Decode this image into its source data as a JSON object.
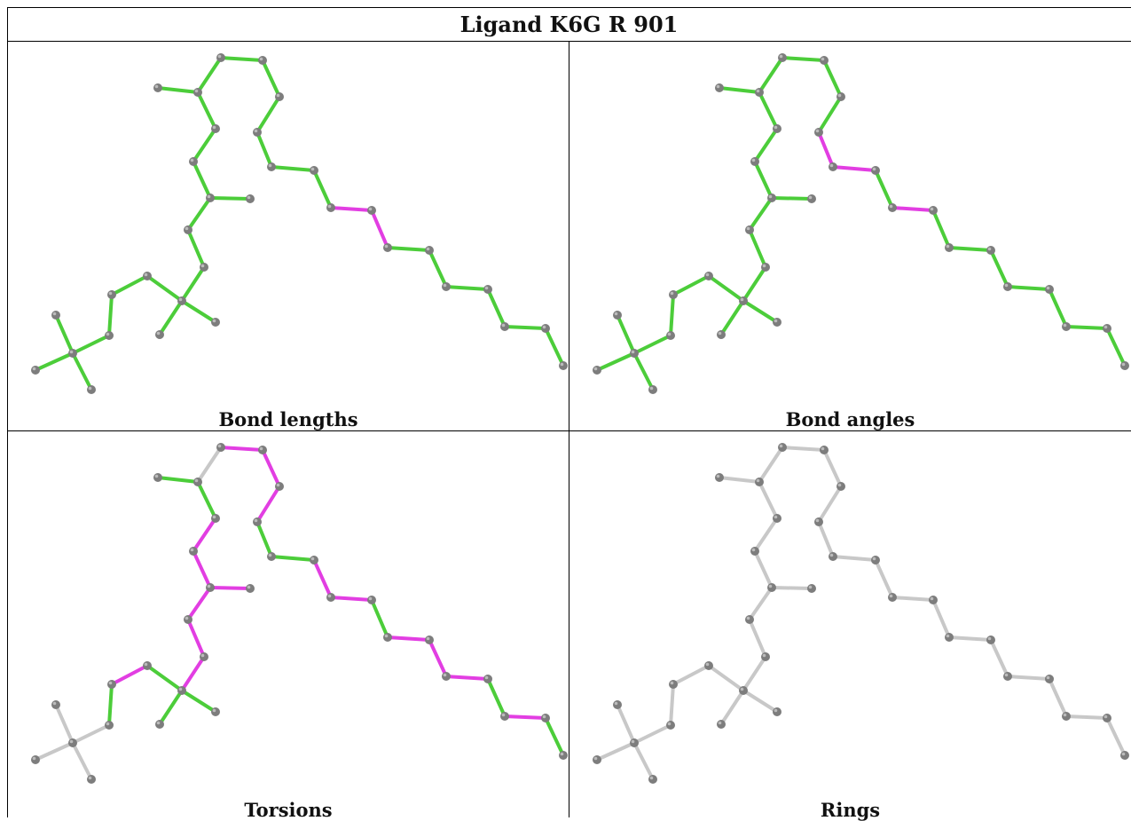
{
  "title": "Ligand K6G R 901",
  "colors": {
    "ok": "#4ccd3a",
    "outlier": "#e23ee2",
    "none": "#c8c8c8",
    "atom": "#7d7d7d",
    "atom_highlight": "#bbbbbb"
  },
  "panels": [
    {
      "id": "bond-lengths",
      "caption": "Bond lengths",
      "bond_states": [
        "ok",
        "ok",
        "ok",
        "ok",
        "ok",
        "ok",
        "ok",
        "ok",
        "ok",
        "ok",
        "ok",
        "ok",
        "ok",
        "ok",
        "ok",
        "ok",
        "ok",
        "ok",
        "ok",
        "ok",
        "ok",
        "ok",
        "ok",
        "ok",
        "outlier",
        "outlier",
        "ok",
        "ok",
        "ok",
        "ok",
        "ok",
        "ok",
        "ok",
        "ok",
        "ok",
        "ok"
      ]
    },
    {
      "id": "bond-angles",
      "caption": "Bond angles",
      "bond_states": [
        "ok",
        "ok",
        "ok",
        "ok",
        "ok",
        "ok",
        "ok",
        "ok",
        "ok",
        "ok",
        "ok",
        "ok",
        "ok",
        "ok",
        "ok",
        "ok",
        "ok",
        "ok",
        "ok",
        "ok",
        "ok",
        "outlier",
        "outlier",
        "ok",
        "outlier",
        "ok",
        "ok",
        "ok",
        "ok",
        "ok",
        "ok",
        "ok",
        "ok",
        "ok",
        "ok",
        "ok"
      ]
    },
    {
      "id": "torsions",
      "caption": "Torsions",
      "bond_states": [
        "none",
        "none",
        "none",
        "none",
        "ok",
        "outlier",
        "ok",
        "ok",
        "ok",
        "outlier",
        "outlier",
        "outlier",
        "outlier",
        "outlier",
        "ok",
        "outlier",
        "ok",
        "none",
        "outlier",
        "outlier",
        "outlier",
        "ok",
        "ok",
        "outlier",
        "outlier",
        "ok",
        "outlier",
        "outlier",
        "outlier",
        "ok",
        "outlier",
        "ok",
        "ok",
        "outlier",
        "outlier",
        "none"
      ]
    },
    {
      "id": "rings",
      "caption": "Rings",
      "bond_states": [
        "none",
        "none",
        "none",
        "none",
        "none",
        "none",
        "none",
        "none",
        "none",
        "none",
        "none",
        "none",
        "none",
        "none",
        "none",
        "none",
        "none",
        "none",
        "none",
        "none",
        "none",
        "none",
        "none",
        "none",
        "none",
        "none",
        "none",
        "none",
        "none",
        "none",
        "none",
        "none",
        "none",
        "none",
        "none",
        "none"
      ]
    }
  ]
}
